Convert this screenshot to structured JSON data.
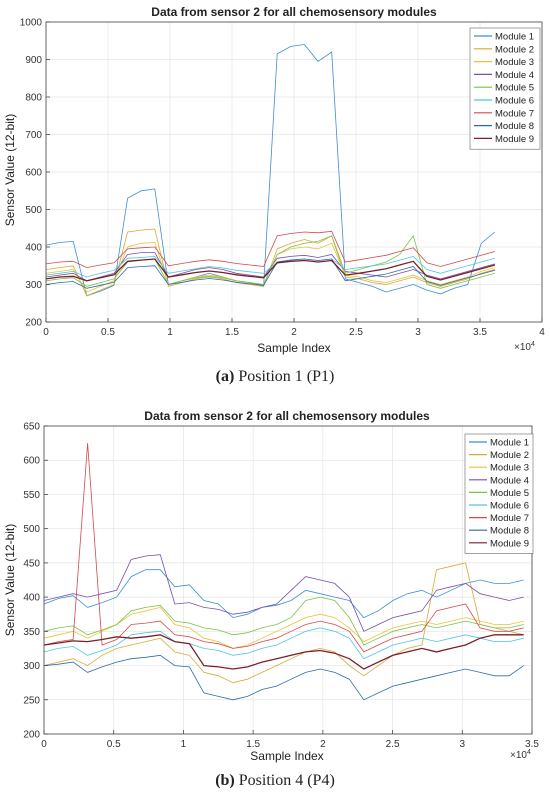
{
  "captions": [
    {
      "letter": "(a)",
      "text": " Position 1 (P1)"
    },
    {
      "letter": "(b)",
      "text": " Position 4 (P4)"
    }
  ],
  "chart_data": [
    {
      "type": "line",
      "title": "Data from sensor 2 for all chemosensory modules",
      "xlabel": "Sample Index",
      "ylabel": "Sensor Value (12-bit)",
      "x_exponent_label": "×10",
      "x_exponent": "4",
      "xlim": [
        0,
        40000
      ],
      "ylim": [
        200,
        1000
      ],
      "xticks": [
        0,
        5000,
        10000,
        15000,
        20000,
        25000,
        30000,
        35000,
        40000
      ],
      "xtick_labels": [
        "0",
        "0.5",
        "1",
        "1.5",
        "2",
        "2.5",
        "3",
        "3.5",
        "4"
      ],
      "yticks": [
        200,
        300,
        400,
        500,
        600,
        700,
        800,
        900,
        1000
      ],
      "grid": true,
      "legend_position": "top-right",
      "series": [
        {
          "name": "Module 1",
          "color": "#3a8fd6",
          "values": [
            405,
            412,
            415,
            270,
            282,
            298,
            530,
            550,
            555,
            300,
            310,
            320,
            330,
            320,
            310,
            305,
            295,
            915,
            935,
            940,
            895,
            920,
            315,
            305,
            295,
            280,
            290,
            300,
            285,
            275,
            290,
            300,
            410,
            440
          ]
        },
        {
          "name": "Module 2",
          "color": "#d9a830",
          "values": [
            340,
            345,
            350,
            270,
            285,
            300,
            440,
            445,
            448,
            295,
            305,
            315,
            320,
            315,
            305,
            300,
            295,
            395,
            410,
            420,
            410,
            430,
            320,
            315,
            305,
            300,
            310,
            320,
            305,
            295,
            305,
            315,
            330,
            340
          ]
        },
        {
          "name": "Module 3",
          "color": "#e8c23a",
          "values": [
            330,
            335,
            340,
            280,
            295,
            310,
            400,
            410,
            412,
            300,
            310,
            320,
            325,
            320,
            310,
            305,
            300,
            380,
            395,
            400,
            395,
            410,
            325,
            320,
            310,
            305,
            315,
            325,
            310,
            300,
            310,
            320,
            335,
            345
          ]
        },
        {
          "name": "Module 4",
          "color": "#7b4fa8",
          "values": [
            320,
            325,
            330,
            310,
            320,
            330,
            380,
            385,
            385,
            320,
            330,
            340,
            345,
            340,
            330,
            325,
            320,
            370,
            375,
            378,
            372,
            380,
            335,
            330,
            325,
            320,
            330,
            340,
            325,
            315,
            325,
            335,
            345,
            355
          ]
        },
        {
          "name": "Module 5",
          "color": "#7cc241",
          "values": [
            310,
            315,
            318,
            295,
            305,
            315,
            360,
            365,
            368,
            300,
            310,
            318,
            322,
            318,
            310,
            305,
            300,
            380,
            400,
            410,
            415,
            430,
            330,
            340,
            350,
            360,
            380,
            430,
            300,
            290,
            300,
            310,
            320,
            330
          ]
        },
        {
          "name": "Module 6",
          "color": "#4fc6e0",
          "values": [
            325,
            330,
            335,
            320,
            330,
            338,
            370,
            372,
            375,
            330,
            336,
            342,
            348,
            344,
            338,
            334,
            330,
            360,
            366,
            368,
            364,
            368,
            340,
            345,
            350,
            355,
            365,
            375,
            340,
            330,
            340,
            350,
            360,
            370
          ]
        },
        {
          "name": "Module 7",
          "color": "#d44a4a",
          "values": [
            355,
            360,
            362,
            345,
            352,
            358,
            395,
            398,
            400,
            350,
            356,
            362,
            366,
            362,
            356,
            352,
            348,
            430,
            436,
            440,
            438,
            442,
            360,
            366,
            372,
            378,
            388,
            398,
            358,
            348,
            358,
            368,
            378,
            388
          ]
        },
        {
          "name": "Module 8",
          "color": "#2a6cb0",
          "values": [
            300,
            305,
            308,
            290,
            298,
            306,
            345,
            348,
            350,
            300,
            306,
            312,
            316,
            312,
            306,
            302,
            298,
            360,
            365,
            368,
            364,
            368,
            310,
            316,
            322,
            328,
            338,
            348,
            308,
            298,
            308,
            318,
            328,
            338
          ]
        },
        {
          "name": "Module 9",
          "color": "#7a1f2a",
          "values": [
            315,
            320,
            322,
            310,
            318,
            326,
            362,
            365,
            368,
            320,
            326,
            332,
            336,
            332,
            326,
            322,
            318,
            358,
            362,
            364,
            360,
            364,
            325,
            330,
            336,
            342,
            352,
            362,
            322,
            312,
            322,
            332,
            342,
            352
          ]
        }
      ]
    },
    {
      "type": "line",
      "title": "Data from sensor 2 for all chemosensory modules",
      "xlabel": "Sample Index",
      "ylabel": "Sensor Value (12-bit)",
      "x_exponent_label": "×10",
      "x_exponent": "4",
      "xlim": [
        0,
        35000
      ],
      "ylim": [
        200,
        650
      ],
      "xticks": [
        0,
        5000,
        10000,
        15000,
        20000,
        25000,
        30000,
        35000
      ],
      "xtick_labels": [
        "0",
        "0.5",
        "1",
        "1.5",
        "2",
        "2.5",
        "3",
        "3.5"
      ],
      "yticks": [
        200,
        250,
        300,
        350,
        400,
        450,
        500,
        550,
        600,
        650
      ],
      "grid": true,
      "legend_position": "top-right",
      "series": [
        {
          "name": "Module 1",
          "color": "#3a8fd6",
          "values": [
            390,
            398,
            402,
            385,
            392,
            400,
            430,
            440,
            440,
            415,
            418,
            395,
            390,
            370,
            375,
            385,
            388,
            395,
            410,
            405,
            400,
            395,
            370,
            380,
            395,
            405,
            410,
            400,
            410,
            420,
            425,
            420,
            420,
            425
          ]
        },
        {
          "name": "Module 2",
          "color": "#d9a830",
          "values": [
            300,
            305,
            310,
            300,
            315,
            325,
            330,
            335,
            340,
            320,
            315,
            290,
            285,
            275,
            280,
            290,
            300,
            310,
            320,
            325,
            320,
            300,
            285,
            300,
            315,
            325,
            330,
            440,
            445,
            450,
            360,
            355,
            350,
            345
          ]
        },
        {
          "name": "Module 3",
          "color": "#e8c23a",
          "values": [
            340,
            345,
            350,
            340,
            350,
            360,
            375,
            380,
            385,
            360,
            355,
            340,
            335,
            325,
            330,
            340,
            350,
            360,
            370,
            375,
            370,
            355,
            335,
            345,
            355,
            360,
            365,
            360,
            365,
            370,
            365,
            360,
            360,
            365
          ]
        },
        {
          "name": "Module 4",
          "color": "#7b4fa8",
          "values": [
            395,
            400,
            405,
            400,
            405,
            410,
            455,
            460,
            462,
            390,
            392,
            385,
            382,
            375,
            378,
            385,
            390,
            410,
            430,
            425,
            420,
            400,
            350,
            360,
            370,
            375,
            380,
            410,
            415,
            420,
            405,
            400,
            395,
            400
          ]
        },
        {
          "name": "Module 5",
          "color": "#7cc241",
          "values": [
            350,
            355,
            358,
            345,
            352,
            360,
            380,
            385,
            388,
            365,
            362,
            355,
            352,
            345,
            348,
            355,
            360,
            370,
            395,
            400,
            395,
            370,
            330,
            340,
            350,
            355,
            360,
            355,
            360,
            365,
            360,
            355,
            355,
            360
          ]
        },
        {
          "name": "Module 6",
          "color": "#4fc6e0",
          "values": [
            320,
            325,
            328,
            315,
            322,
            330,
            345,
            348,
            350,
            335,
            332,
            325,
            322,
            315,
            318,
            325,
            330,
            340,
            350,
            355,
            350,
            340,
            310,
            320,
            330,
            335,
            340,
            335,
            340,
            345,
            340,
            335,
            335,
            340
          ]
        },
        {
          "name": "Module 7",
          "color": "#d44a4a",
          "values": [
            330,
            335,
            338,
            625,
            330,
            338,
            360,
            362,
            365,
            345,
            342,
            335,
            332,
            325,
            328,
            335,
            340,
            350,
            360,
            365,
            360,
            350,
            320,
            330,
            340,
            345,
            350,
            380,
            385,
            390,
            355,
            350,
            350,
            355
          ]
        },
        {
          "name": "Module 8",
          "color": "#2a6cb0",
          "values": [
            300,
            302,
            305,
            290,
            298,
            305,
            310,
            312,
            315,
            300,
            298,
            260,
            255,
            250,
            255,
            265,
            270,
            280,
            290,
            295,
            290,
            280,
            250,
            260,
            270,
            275,
            280,
            285,
            290,
            295,
            290,
            285,
            285,
            300
          ]
        },
        {
          "name": "Module 9",
          "color": "#7a1f2a",
          "values": [
            330,
            333,
            336,
            335,
            338,
            342,
            340,
            342,
            345,
            335,
            332,
            300,
            298,
            295,
            298,
            305,
            310,
            315,
            320,
            322,
            318,
            310,
            295,
            305,
            315,
            320,
            325,
            320,
            325,
            330,
            340,
            345,
            345,
            345
          ]
        }
      ]
    }
  ]
}
